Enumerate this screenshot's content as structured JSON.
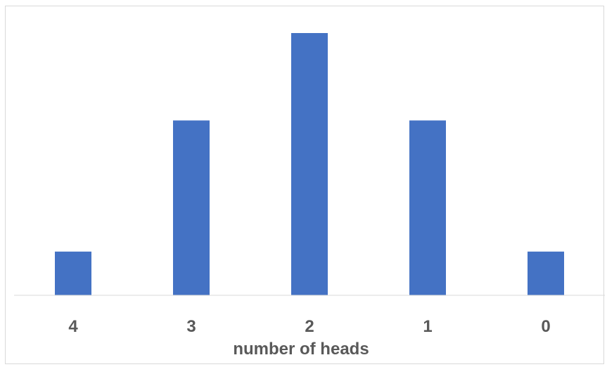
{
  "chart_data": {
    "type": "bar",
    "categories": [
      "4",
      "3",
      "2",
      "1",
      "0"
    ],
    "values": [
      1,
      4,
      6,
      4,
      1
    ],
    "title": "",
    "xlabel": "number of heads",
    "ylabel": "",
    "ylim": [
      0,
      6
    ],
    "grid": false,
    "legend": "none",
    "bar_color": "#4472C4",
    "axis_line_color": "#d9d9d9",
    "text_color": "#595959"
  }
}
